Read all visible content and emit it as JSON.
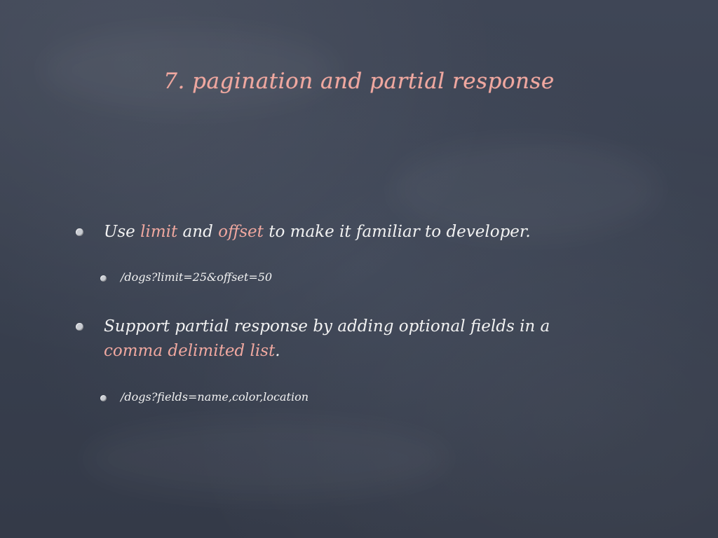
{
  "slide": {
    "title": "7. pagination and partial response",
    "bullets": [
      {
        "level": 1,
        "parts": [
          {
            "text": "Use ",
            "highlight": false
          },
          {
            "text": "limit",
            "highlight": true
          },
          {
            "text": " and ",
            "highlight": false
          },
          {
            "text": "offset",
            "highlight": true
          },
          {
            "text": " to make it familiar to developer.",
            "highlight": false
          }
        ]
      },
      {
        "level": 2,
        "text": "/dogs?limit=25&offset=50"
      },
      {
        "level": 1,
        "line1": "Support partial response by adding optional fields in a",
        "line2_highlight": "comma delimited list",
        "line2_rest": "."
      },
      {
        "level": 2,
        "text": "/dogs?fields=name,color,location"
      }
    ],
    "colors": {
      "background": "#3a4150",
      "accent": "#f0a8a0",
      "text": "#f2f2f2"
    }
  }
}
